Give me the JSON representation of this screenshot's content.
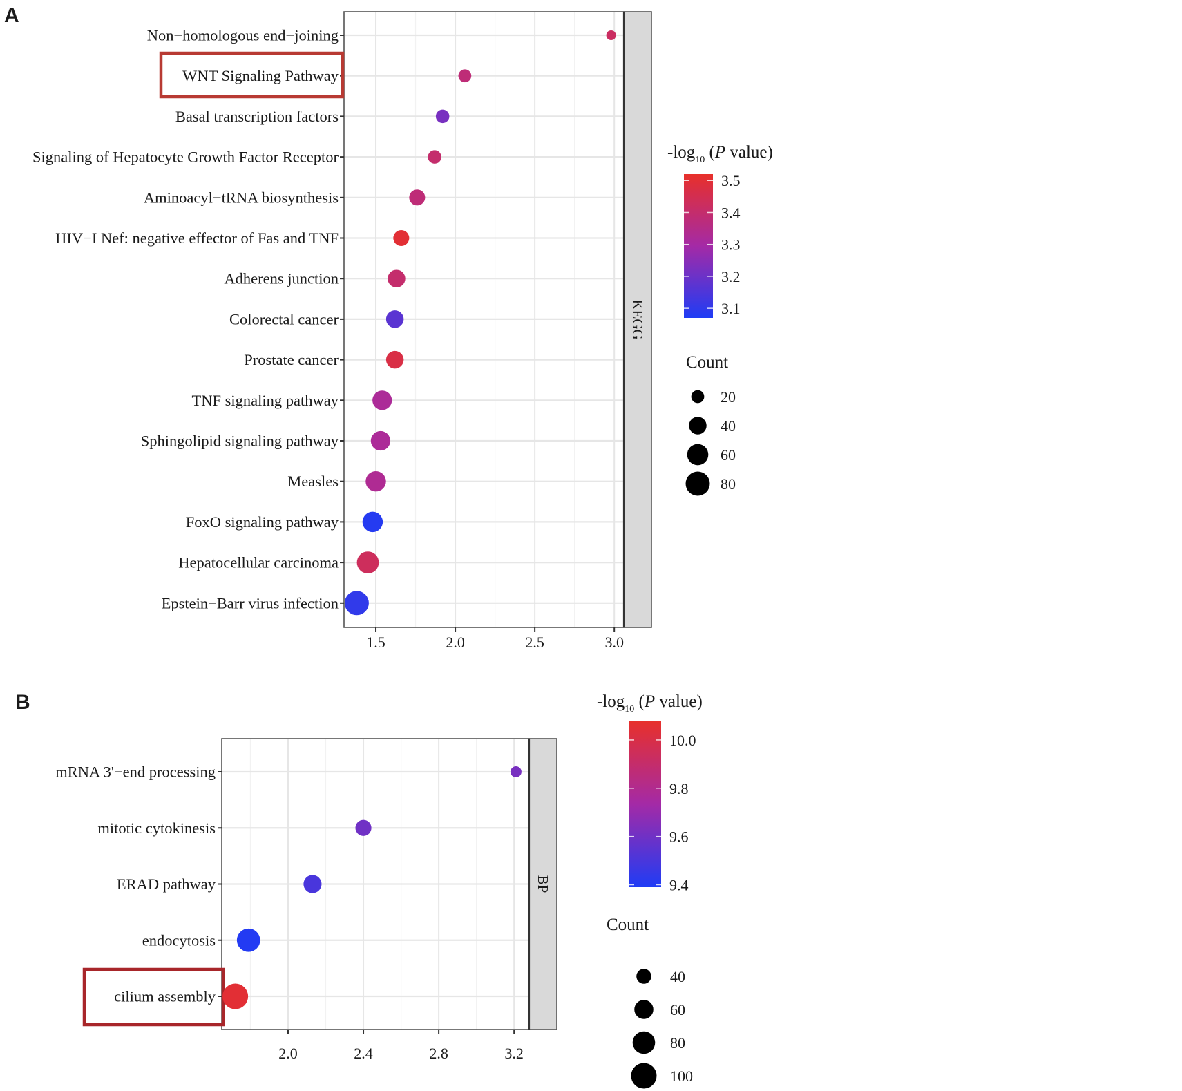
{
  "chart_data": [
    {
      "panel": "A",
      "type": "scatter",
      "subtype": "dot-plot",
      "facet_label": "KEGG",
      "xlabel": "",
      "ylabel": "",
      "xlim": [
        1.3,
        3.06
      ],
      "xticks": [
        1.5,
        2.0,
        2.5,
        3.0
      ],
      "xtick_labels": [
        "1.5",
        "2.0",
        "2.5",
        "3.0"
      ],
      "grid": true,
      "highlighted_category": "WNT Signaling Pathway",
      "highlight_color": "#b83a33",
      "categories": [
        "Non−homologous end−joining",
        "WNT Signaling Pathway",
        "Basal transcription factors",
        "Signaling of Hepatocyte Growth Factor Receptor",
        "Aminoacyl−tRNA biosynthesis",
        "HIV−I Nef: negative effector of Fas and TNF",
        "Adherens junction",
        "Colorectal cancer",
        "Prostate cancer",
        "TNF signaling pathway",
        "Sphingolipid signaling pathway",
        "Measles",
        "FoxO signaling pathway",
        "Hepatocellular carcinoma",
        "Epstein−Barr virus infection"
      ],
      "x": [
        2.98,
        2.06,
        1.92,
        1.87,
        1.76,
        1.66,
        1.63,
        1.62,
        1.62,
        1.54,
        1.53,
        1.5,
        1.48,
        1.45,
        1.38
      ],
      "color_values": [
        3.42,
        3.38,
        3.22,
        3.4,
        3.38,
        3.5,
        3.4,
        3.17,
        3.47,
        3.32,
        3.32,
        3.33,
        3.08,
        3.43,
        3.1
      ],
      "size_values": [
        10,
        20,
        22,
        22,
        32,
        32,
        40,
        40,
        40,
        50,
        50,
        55,
        55,
        65,
        80
      ],
      "color_legend": {
        "title_prefix": "-log",
        "title_sub": "10",
        "title_italic": "P",
        "title_suffix": " value)",
        "title_open": " (",
        "range": [
          3.07,
          3.52
        ],
        "ticks": [
          3.5,
          3.4,
          3.3,
          3.2,
          3.1
        ],
        "tick_labels": [
          "3.5",
          "3.4",
          "3.3",
          "3.2",
          "3.1"
        ],
        "low_color": "#1f3cf5",
        "mid_color": "#a42aa6",
        "high_color": "#e8302a"
      },
      "size_legend": {
        "title": "Count",
        "values": [
          20,
          40,
          60,
          80
        ],
        "labels": [
          "20",
          "40",
          "60",
          "80"
        ]
      }
    },
    {
      "panel": "B",
      "type": "scatter",
      "subtype": "dot-plot",
      "facet_label": "BP",
      "xlabel": "",
      "ylabel": "",
      "xlim": [
        1.648,
        3.28
      ],
      "xticks": [
        2.0,
        2.4,
        2.8,
        3.2
      ],
      "xtick_labels": [
        "2.0",
        "2.4",
        "2.8",
        "3.2"
      ],
      "grid": true,
      "highlighted_category": "cilium assembly",
      "highlight_color": "#a8262a",
      "categories": [
        "mRNA 3'−end processing",
        "mitotic cytokinesis",
        "ERAD pathway",
        "endocytosis",
        "cilium assembly"
      ],
      "x": [
        3.21,
        2.4,
        2.13,
        1.79,
        1.72
      ],
      "color_values": [
        9.62,
        9.6,
        9.5,
        9.4,
        10.05
      ],
      "size_values": [
        25,
        45,
        55,
        85,
        100
      ],
      "color_legend": {
        "title_prefix": "-log",
        "title_sub": "10",
        "title_italic": "P",
        "title_suffix": " value)",
        "title_open": " (",
        "range": [
          9.39,
          10.08
        ],
        "ticks": [
          10.0,
          9.8,
          9.6,
          9.4
        ],
        "tick_labels": [
          "10.0",
          "9.8",
          "9.6",
          "9.4"
        ],
        "low_color": "#1f3cf5",
        "mid_color": "#a42aa6",
        "high_color": "#e8302a"
      },
      "size_legend": {
        "title": "Count",
        "values": [
          40,
          60,
          80,
          100
        ],
        "labels": [
          "40",
          "60",
          "80",
          "100"
        ]
      }
    }
  ],
  "panel_labels": [
    "A",
    "B"
  ]
}
